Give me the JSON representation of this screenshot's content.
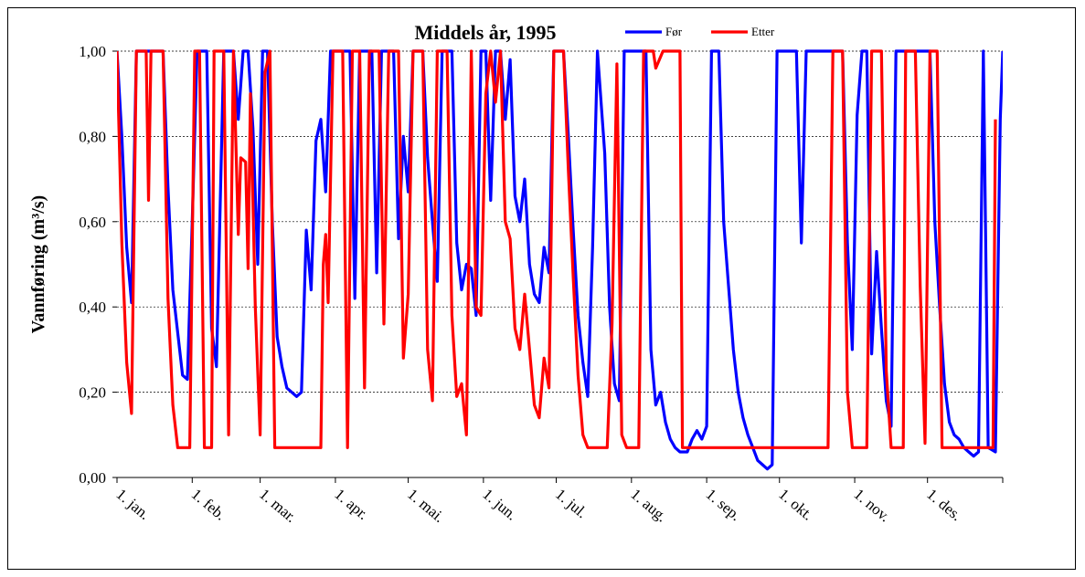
{
  "chart_data": {
    "type": "line",
    "title": "Middels år, 1995",
    "xlabel": "",
    "ylabel": "Vannføring (m³/s)",
    "ylim": [
      0,
      1
    ],
    "yticks": [
      "0,00",
      "0,20",
      "0,40",
      "0,60",
      "0,80",
      "1,00"
    ],
    "ytick_values": [
      0,
      0.2,
      0.4,
      0.6,
      0.8,
      1.0
    ],
    "xlim": [
      1,
      366
    ],
    "categories": [
      "1. jan.",
      "1. feb.",
      "1. mar.",
      "1. apr.",
      "1. mai.",
      "1. jun.",
      "1. jul.",
      "1. aug.",
      "1. sep.",
      "1. okt.",
      "1. nov.",
      "1. des."
    ],
    "category_days": [
      1,
      32,
      60,
      91,
      121,
      152,
      182,
      213,
      244,
      274,
      305,
      335
    ],
    "grid": true,
    "legend_position": "top-right",
    "series": [
      {
        "name": "Før",
        "color": "#0000ff",
        "points": [
          [
            1,
            1.0
          ],
          [
            3,
            0.8
          ],
          [
            5,
            0.54
          ],
          [
            7,
            0.41
          ],
          [
            9,
            1.0
          ],
          [
            20,
            1.0
          ],
          [
            22,
            0.68
          ],
          [
            24,
            0.44
          ],
          [
            26,
            0.34
          ],
          [
            28,
            0.24
          ],
          [
            30,
            0.23
          ],
          [
            32,
            0.6
          ],
          [
            34,
            1.0
          ],
          [
            38,
            1.0
          ],
          [
            40,
            0.35
          ],
          [
            42,
            0.26
          ],
          [
            45,
            1.0
          ],
          [
            49,
            1.0
          ],
          [
            51,
            0.84
          ],
          [
            53,
            1.0
          ],
          [
            55,
            1.0
          ],
          [
            57,
            0.82
          ],
          [
            59,
            0.5
          ],
          [
            61,
            1.0
          ],
          [
            63,
            1.0
          ],
          [
            65,
            0.6
          ],
          [
            67,
            0.33
          ],
          [
            69,
            0.26
          ],
          [
            71,
            0.21
          ],
          [
            73,
            0.2
          ],
          [
            75,
            0.19
          ],
          [
            77,
            0.2
          ],
          [
            79,
            0.58
          ],
          [
            81,
            0.44
          ],
          [
            83,
            0.79
          ],
          [
            85,
            0.84
          ],
          [
            87,
            0.67
          ],
          [
            89,
            1.0
          ],
          [
            97,
            1.0
          ],
          [
            99,
            0.42
          ],
          [
            101,
            1.0
          ],
          [
            106,
            1.0
          ],
          [
            108,
            0.48
          ],
          [
            110,
            1.0
          ],
          [
            115,
            1.0
          ],
          [
            117,
            0.56
          ],
          [
            119,
            0.8
          ],
          [
            121,
            0.67
          ],
          [
            123,
            1.0
          ],
          [
            127,
            1.0
          ],
          [
            129,
            0.75
          ],
          [
            131,
            0.6
          ],
          [
            133,
            0.46
          ],
          [
            135,
            1.0
          ],
          [
            139,
            1.0
          ],
          [
            141,
            0.55
          ],
          [
            143,
            0.44
          ],
          [
            145,
            0.5
          ],
          [
            147,
            0.49
          ],
          [
            149,
            0.38
          ],
          [
            151,
            1.0
          ],
          [
            153,
            1.0
          ],
          [
            155,
            0.65
          ],
          [
            157,
            1.0
          ],
          [
            159,
            1.0
          ],
          [
            161,
            0.84
          ],
          [
            163,
            0.98
          ],
          [
            165,
            0.66
          ],
          [
            167,
            0.6
          ],
          [
            169,
            0.7
          ],
          [
            171,
            0.5
          ],
          [
            173,
            0.43
          ],
          [
            175,
            0.41
          ],
          [
            177,
            0.54
          ],
          [
            179,
            0.48
          ],
          [
            181,
            1.0
          ],
          [
            185,
            1.0
          ],
          [
            187,
            0.8
          ],
          [
            189,
            0.58
          ],
          [
            191,
            0.38
          ],
          [
            193,
            0.27
          ],
          [
            195,
            0.19
          ],
          [
            197,
            0.54
          ],
          [
            199,
            1.0
          ],
          [
            202,
            0.76
          ],
          [
            204,
            0.4
          ],
          [
            206,
            0.22
          ],
          [
            208,
            0.18
          ],
          [
            210,
            1.0
          ],
          [
            219,
            1.0
          ],
          [
            221,
            0.3
          ],
          [
            223,
            0.17
          ],
          [
            225,
            0.2
          ],
          [
            227,
            0.13
          ],
          [
            229,
            0.09
          ],
          [
            231,
            0.07
          ],
          [
            233,
            0.06
          ],
          [
            236,
            0.06
          ],
          [
            238,
            0.09
          ],
          [
            240,
            0.11
          ],
          [
            242,
            0.09
          ],
          [
            244,
            0.12
          ],
          [
            246,
            1.0
          ],
          [
            249,
            1.0
          ],
          [
            251,
            0.6
          ],
          [
            253,
            0.45
          ],
          [
            255,
            0.3
          ],
          [
            257,
            0.2
          ],
          [
            259,
            0.14
          ],
          [
            261,
            0.1
          ],
          [
            263,
            0.07
          ],
          [
            265,
            0.04
          ],
          [
            267,
            0.03
          ],
          [
            269,
            0.02
          ],
          [
            271,
            0.03
          ],
          [
            273,
            1.0
          ],
          [
            281,
            1.0
          ],
          [
            283,
            0.55
          ],
          [
            285,
            1.0
          ],
          [
            300,
            1.0
          ],
          [
            302,
            0.55
          ],
          [
            304,
            0.3
          ],
          [
            306,
            0.85
          ],
          [
            308,
            1.0
          ],
          [
            310,
            1.0
          ],
          [
            312,
            0.29
          ],
          [
            314,
            0.53
          ],
          [
            316,
            0.35
          ],
          [
            318,
            0.18
          ],
          [
            320,
            0.12
          ],
          [
            322,
            1.0
          ],
          [
            336,
            1.0
          ],
          [
            338,
            0.6
          ],
          [
            340,
            0.4
          ],
          [
            342,
            0.22
          ],
          [
            344,
            0.13
          ],
          [
            346,
            0.1
          ],
          [
            348,
            0.09
          ],
          [
            350,
            0.07
          ],
          [
            352,
            0.06
          ],
          [
            354,
            0.05
          ],
          [
            356,
            0.06
          ],
          [
            358,
            1.0
          ],
          [
            360,
            0.07
          ],
          [
            363,
            0.06
          ],
          [
            365,
            0.84
          ],
          [
            366,
            1.0
          ]
        ]
      },
      {
        "name": "Etter",
        "color": "#ff0000",
        "points": [
          [
            1,
            1.0
          ],
          [
            3,
            0.55
          ],
          [
            5,
            0.27
          ],
          [
            7,
            0.15
          ],
          [
            9,
            1.0
          ],
          [
            13,
            1.0
          ],
          [
            14,
            0.65
          ],
          [
            15,
            1.0
          ],
          [
            20,
            1.0
          ],
          [
            22,
            0.42
          ],
          [
            24,
            0.17
          ],
          [
            26,
            0.07
          ],
          [
            31,
            0.07
          ],
          [
            33,
            1.0
          ],
          [
            35,
            1.0
          ],
          [
            37,
            0.07
          ],
          [
            40,
            0.07
          ],
          [
            41,
            1.0
          ],
          [
            45,
            1.0
          ],
          [
            47,
            0.1
          ],
          [
            49,
            1.0
          ],
          [
            51,
            0.57
          ],
          [
            52,
            0.75
          ],
          [
            54,
            0.74
          ],
          [
            55,
            0.49
          ],
          [
            56,
            0.9
          ],
          [
            58,
            0.4
          ],
          [
            60,
            0.1
          ],
          [
            62,
            0.95
          ],
          [
            64,
            1.0
          ],
          [
            66,
            0.07
          ],
          [
            85,
            0.07
          ],
          [
            86,
            0.5
          ],
          [
            87,
            0.57
          ],
          [
            88,
            0.41
          ],
          [
            90,
            1.0
          ],
          [
            94,
            1.0
          ],
          [
            96,
            0.07
          ],
          [
            98,
            1.0
          ],
          [
            101,
            1.0
          ],
          [
            103,
            0.21
          ],
          [
            105,
            1.0
          ],
          [
            109,
            1.0
          ],
          [
            111,
            0.36
          ],
          [
            113,
            1.0
          ],
          [
            117,
            1.0
          ],
          [
            119,
            0.28
          ],
          [
            121,
            0.43
          ],
          [
            123,
            1.0
          ],
          [
            127,
            1.0
          ],
          [
            129,
            0.3
          ],
          [
            131,
            0.18
          ],
          [
            133,
            1.0
          ],
          [
            137,
            1.0
          ],
          [
            139,
            0.38
          ],
          [
            141,
            0.19
          ],
          [
            143,
            0.22
          ],
          [
            145,
            0.1
          ],
          [
            147,
            1.0
          ],
          [
            149,
            0.4
          ],
          [
            151,
            0.38
          ],
          [
            153,
            0.9
          ],
          [
            155,
            1.0
          ],
          [
            157,
            0.88
          ],
          [
            159,
            1.0
          ],
          [
            161,
            0.6
          ],
          [
            163,
            0.56
          ],
          [
            165,
            0.35
          ],
          [
            167,
            0.3
          ],
          [
            169,
            0.43
          ],
          [
            171,
            0.3
          ],
          [
            173,
            0.17
          ],
          [
            175,
            0.14
          ],
          [
            177,
            0.28
          ],
          [
            179,
            0.21
          ],
          [
            181,
            1.0
          ],
          [
            185,
            1.0
          ],
          [
            187,
            0.72
          ],
          [
            189,
            0.47
          ],
          [
            191,
            0.24
          ],
          [
            193,
            0.1
          ],
          [
            195,
            0.07
          ],
          [
            203,
            0.07
          ],
          [
            205,
            0.36
          ],
          [
            207,
            0.97
          ],
          [
            209,
            0.1
          ],
          [
            211,
            0.07
          ],
          [
            216,
            0.07
          ],
          [
            218,
            1.0
          ],
          [
            222,
            1.0
          ],
          [
            223,
            0.96
          ],
          [
            226,
            1.0
          ],
          [
            233,
            1.0
          ],
          [
            234,
            0.07
          ],
          [
            294,
            0.07
          ],
          [
            296,
            1.0
          ],
          [
            300,
            1.0
          ],
          [
            302,
            0.2
          ],
          [
            304,
            0.07
          ],
          [
            310,
            0.07
          ],
          [
            312,
            1.0
          ],
          [
            316,
            1.0
          ],
          [
            318,
            0.25
          ],
          [
            320,
            0.07
          ],
          [
            325,
            0.07
          ],
          [
            326,
            1.0
          ],
          [
            330,
            1.0
          ],
          [
            332,
            0.45
          ],
          [
            334,
            0.08
          ],
          [
            336,
            1.0
          ],
          [
            339,
            1.0
          ],
          [
            341,
            0.07
          ],
          [
            362,
            0.07
          ],
          [
            363,
            0.84
          ]
        ]
      }
    ]
  }
}
